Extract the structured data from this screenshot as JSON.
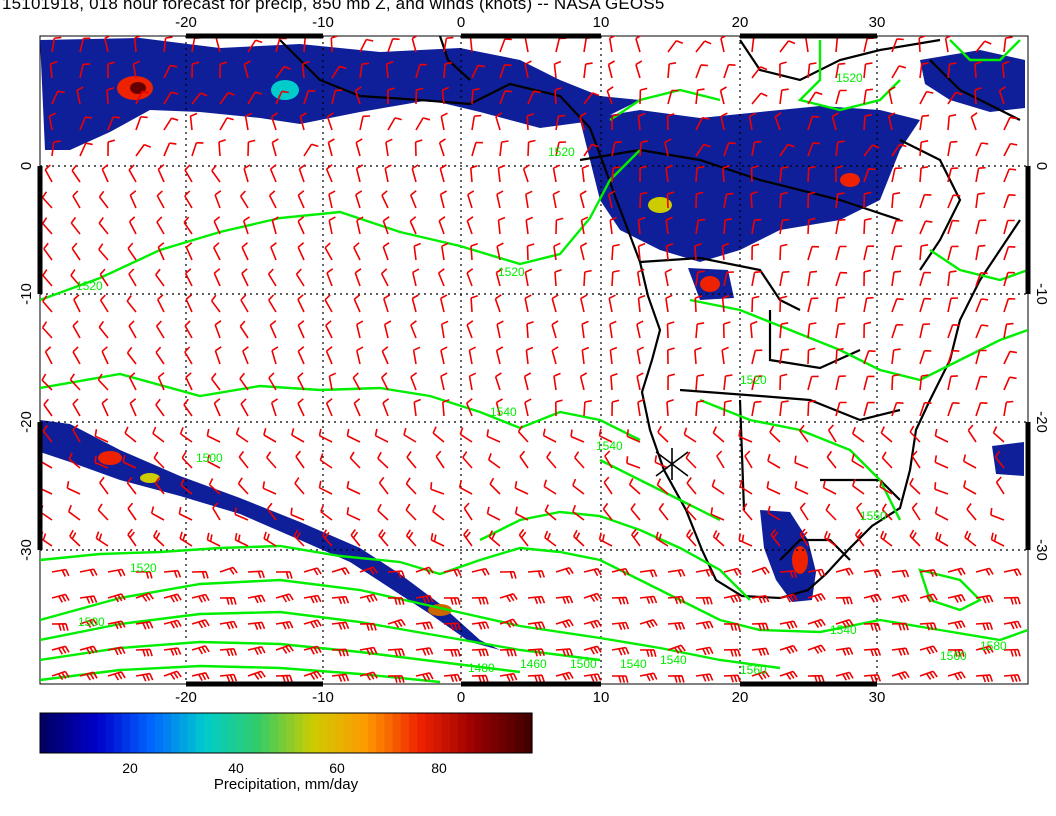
{
  "title": "15101918, 018 hour forecast for precip, 850 mb Z, and winds (knots) -- NASA GEOS5",
  "map": {
    "lon_ticks": [
      "-20",
      "-10",
      "0",
      "10",
      "20",
      "30"
    ],
    "lat_ticks_left": [
      "0",
      "-10",
      "-20",
      "-30"
    ],
    "lat_ticks_right": [
      "0",
      "-10",
      "-20",
      "-30"
    ],
    "contour_labels": [
      "1520",
      "1520",
      "1520",
      "1540",
      "1540",
      "1520",
      "1500",
      "1500",
      "1520",
      "1480",
      "1460",
      "1500",
      "1540",
      "1560",
      "1520",
      "1540",
      "1540",
      "1550",
      "1560",
      "1580"
    ],
    "colors": {
      "precip_line_contours": "#00ee00",
      "wind_barbs": "#ee0000",
      "coastlines": "#000000"
    }
  },
  "colorbar": {
    "ticks": [
      "20",
      "40",
      "60",
      "80"
    ],
    "label": "Precipitation, mm/day",
    "range": [
      0,
      100
    ],
    "colors": [
      "#000066",
      "#0000cc",
      "#0066ff",
      "#00cccc",
      "#33cc66",
      "#cccc00",
      "#ff9900",
      "#ee2200",
      "#990000",
      "#440000"
    ]
  }
}
